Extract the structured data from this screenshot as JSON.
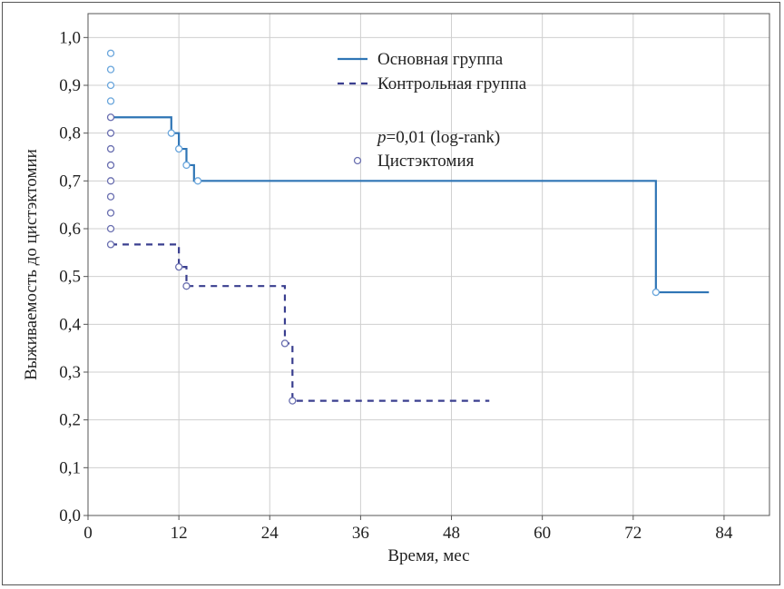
{
  "chart_data": {
    "type": "line",
    "xlabel": "Время, мес",
    "ylabel": "Выживаемость до цистэктомии",
    "xlim": [
      0,
      90
    ],
    "ylim": [
      0,
      1.05
    ],
    "x_ticks": [
      "0",
      "12",
      "24",
      "36",
      "48",
      "60",
      "72",
      "84"
    ],
    "x_tick_values": [
      0,
      12,
      24,
      36,
      48,
      60,
      72,
      84
    ],
    "y_ticks": [
      "0,0",
      "0,1",
      "0,2",
      "0,3",
      "0,4",
      "0,5",
      "0,6",
      "0,7",
      "0,8",
      "0,9",
      "1,0"
    ],
    "y_tick_values": [
      0,
      0.1,
      0.2,
      0.3,
      0.4,
      0.5,
      0.6,
      0.7,
      0.8,
      0.9,
      1.0
    ],
    "grid": true,
    "legend_position": "top-center",
    "series": [
      {
        "name": "Основная группа",
        "color": "#2f75b5",
        "style": "solid",
        "x": [
          3,
          11,
          12,
          13,
          14,
          75,
          82
        ],
        "y": [
          0.833,
          0.8,
          0.767,
          0.733,
          0.7,
          0.467,
          0.467
        ],
        "censored": [
          [
            3,
            0.967
          ],
          [
            3,
            0.933
          ],
          [
            3,
            0.9
          ],
          [
            3,
            0.867
          ],
          [
            11,
            0.8
          ],
          [
            12,
            0.767
          ],
          [
            13,
            0.733
          ],
          [
            14.5,
            0.7
          ],
          [
            75,
            0.467
          ]
        ]
      },
      {
        "name": "Контрольная группа",
        "color": "#3a3f8f",
        "style": "dashed",
        "x": [
          3,
          12,
          13,
          26,
          27,
          53
        ],
        "y": [
          0.567,
          0.52,
          0.48,
          0.36,
          0.24,
          0.24
        ],
        "censored": [
          [
            3,
            0.833
          ],
          [
            3,
            0.8
          ],
          [
            3,
            0.767
          ],
          [
            3,
            0.733
          ],
          [
            3,
            0.7
          ],
          [
            3,
            0.667
          ],
          [
            3,
            0.633
          ],
          [
            3,
            0.6
          ],
          [
            3,
            0.567
          ],
          [
            12,
            0.52
          ],
          [
            13,
            0.48
          ],
          [
            26,
            0.36
          ],
          [
            27,
            0.24
          ]
        ]
      }
    ],
    "legend": {
      "pvalue_italic": "p",
      "pvalue_text": "=0,01 (log-rank)",
      "censor_label": "Цистэктомия"
    }
  }
}
